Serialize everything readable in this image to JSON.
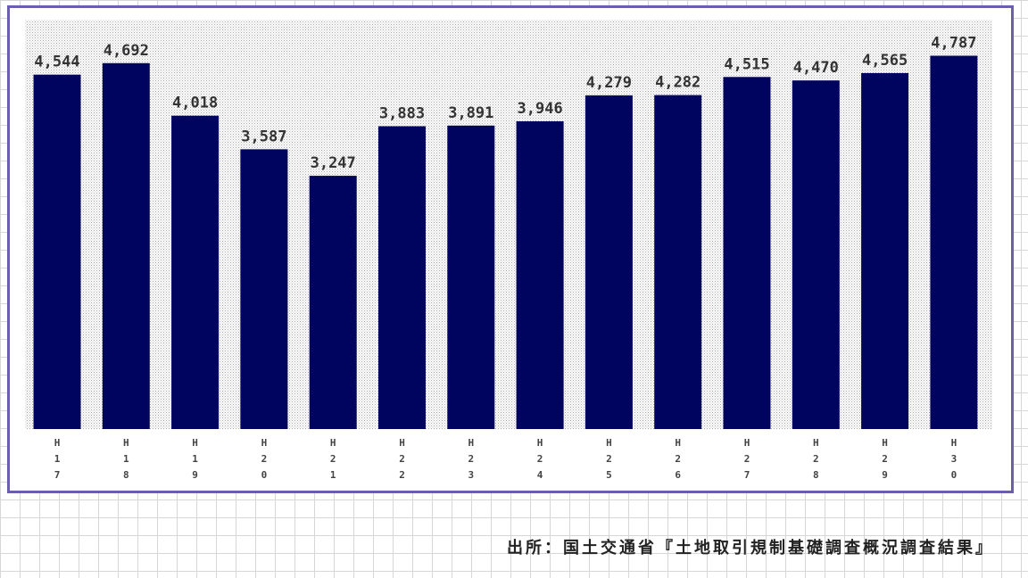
{
  "chart_data": {
    "type": "bar",
    "categories": [
      "H17",
      "H18",
      "H19",
      "H20",
      "H21",
      "H22",
      "H23",
      "H24",
      "H25",
      "H26",
      "H27",
      "H28",
      "H29",
      "H30"
    ],
    "values": [
      4544,
      4692,
      4018,
      3587,
      3247,
      3883,
      3891,
      3946,
      4279,
      4282,
      4515,
      4470,
      4565,
      4787
    ],
    "value_labels": [
      "4,544",
      "4,692",
      "4,018",
      "3,587",
      "3,247",
      "3,883",
      "3,891",
      "3,946",
      "4,279",
      "4,282",
      "4,515",
      "4,470",
      "4,565",
      "4,787"
    ],
    "title": "",
    "xlabel": "",
    "ylabel": "",
    "ylim": [
      0,
      5250
    ],
    "bar_color": "#00045e",
    "grid": false,
    "legend": "none"
  },
  "source_note": "出所：国土交通省『土地取引規制基礎調査概況調査結果』",
  "colors": {
    "frame": "#6a5fa8",
    "plot_dots": "#a8a8a8",
    "logo": "#e8803c"
  }
}
